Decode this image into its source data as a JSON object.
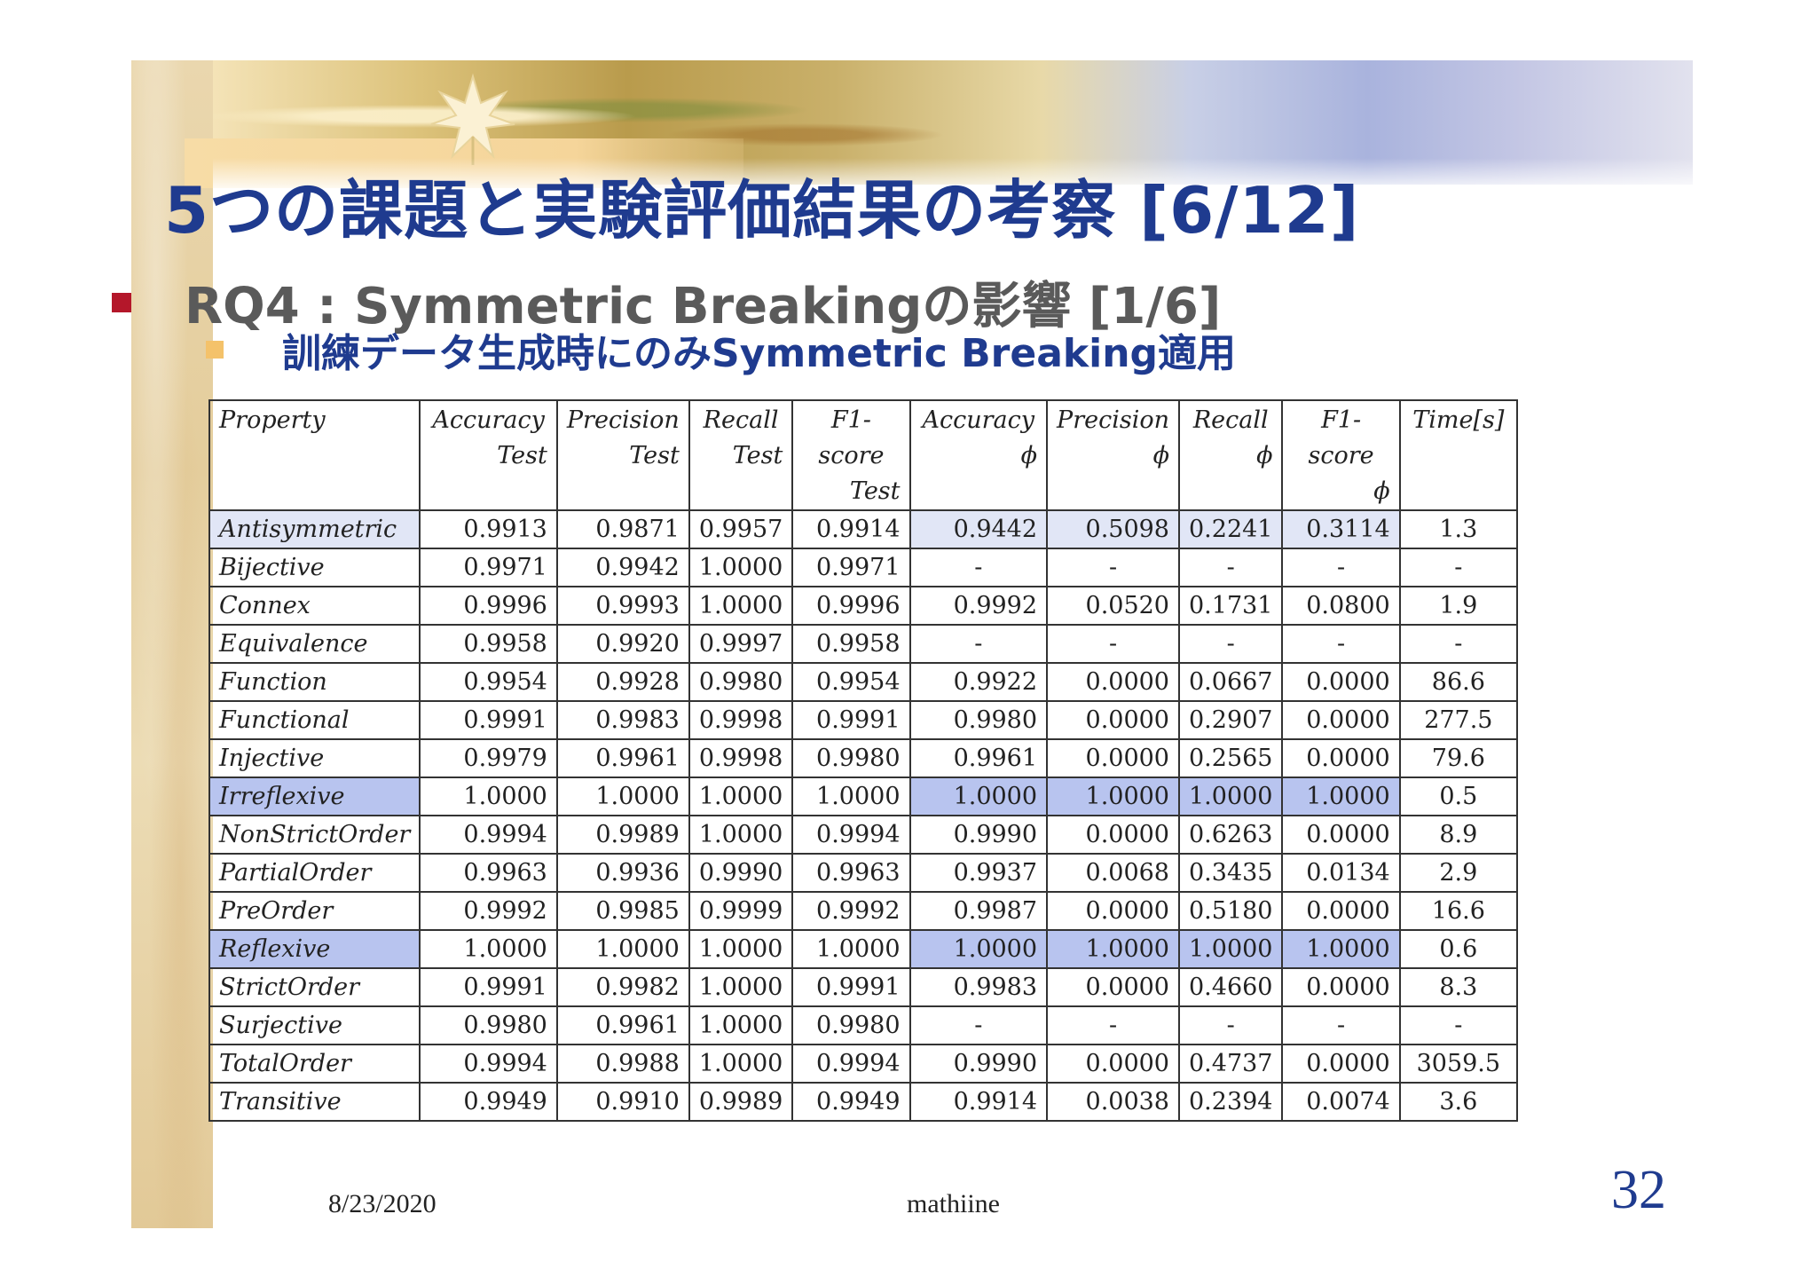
{
  "slide": {
    "title": "5つの課題と実験評価結果の考察 [6/12]",
    "bullet1": "RQ4 : Symmetric Breakingの影響 [1/6]",
    "bullet2": "訓練データ生成時にのみSymmetric Breaking適用",
    "date": "8/23/2020",
    "author": "mathiine",
    "page_number": "32"
  },
  "colors": {
    "title": "#1f3b8f",
    "bullet1_marker": "#b4172a",
    "bullet2_marker": "#f4c26a",
    "highlight_light": "#e1e6f6",
    "highlight_strong": "#b8c4ef"
  },
  "table": {
    "headers": [
      {
        "line1": "Property",
        "line2": ""
      },
      {
        "line1": "Accuracy",
        "line2": "Test"
      },
      {
        "line1": "Precision",
        "line2": "Test"
      },
      {
        "line1": "Recall",
        "line2": "Test"
      },
      {
        "line1": "F1-score",
        "line2": "Test"
      },
      {
        "line1": "Accuracy",
        "line2": "ϕ"
      },
      {
        "line1": "Precision",
        "line2": "ϕ"
      },
      {
        "line1": "Recall",
        "line2": "ϕ"
      },
      {
        "line1": "F1-score",
        "line2": "ϕ"
      },
      {
        "line1": "Time[s]",
        "line2": ""
      }
    ],
    "rows": [
      {
        "highlight": "light",
        "cells": [
          "Antisymmetric",
          "0.9913",
          "0.9871",
          "0.9957",
          "0.9914",
          "0.9442",
          "0.5098",
          "0.2241",
          "0.3114",
          "1.3"
        ]
      },
      {
        "highlight": "none",
        "cells": [
          "Bijective",
          "0.9971",
          "0.9942",
          "1.0000",
          "0.9971",
          "-",
          "-",
          "-",
          "-",
          "-"
        ]
      },
      {
        "highlight": "none",
        "cells": [
          "Connex",
          "0.9996",
          "0.9993",
          "1.0000",
          "0.9996",
          "0.9992",
          "0.0520",
          "0.1731",
          "0.0800",
          "1.9"
        ]
      },
      {
        "highlight": "none",
        "cells": [
          "Equivalence",
          "0.9958",
          "0.9920",
          "0.9997",
          "0.9958",
          "-",
          "-",
          "-",
          "-",
          "-"
        ]
      },
      {
        "highlight": "none",
        "cells": [
          "Function",
          "0.9954",
          "0.9928",
          "0.9980",
          "0.9954",
          "0.9922",
          "0.0000",
          "0.0667",
          "0.0000",
          "86.6"
        ]
      },
      {
        "highlight": "none",
        "cells": [
          "Functional",
          "0.9991",
          "0.9983",
          "0.9998",
          "0.9991",
          "0.9980",
          "0.0000",
          "0.2907",
          "0.0000",
          "277.5"
        ]
      },
      {
        "highlight": "none",
        "cells": [
          "Injective",
          "0.9979",
          "0.9961",
          "0.9998",
          "0.9980",
          "0.9961",
          "0.0000",
          "0.2565",
          "0.0000",
          "79.6"
        ]
      },
      {
        "highlight": "strong",
        "cells": [
          "Irreflexive",
          "1.0000",
          "1.0000",
          "1.0000",
          "1.0000",
          "1.0000",
          "1.0000",
          "1.0000",
          "1.0000",
          "0.5"
        ]
      },
      {
        "highlight": "none",
        "cells": [
          "NonStrictOrder",
          "0.9994",
          "0.9989",
          "1.0000",
          "0.9994",
          "0.9990",
          "0.0000",
          "0.6263",
          "0.0000",
          "8.9"
        ]
      },
      {
        "highlight": "none",
        "cells": [
          "PartialOrder",
          "0.9963",
          "0.9936",
          "0.9990",
          "0.9963",
          "0.9937",
          "0.0068",
          "0.3435",
          "0.0134",
          "2.9"
        ]
      },
      {
        "highlight": "none",
        "cells": [
          "PreOrder",
          "0.9992",
          "0.9985",
          "0.9999",
          "0.9992",
          "0.9987",
          "0.0000",
          "0.5180",
          "0.0000",
          "16.6"
        ]
      },
      {
        "highlight": "strong",
        "cells": [
          "Reflexive",
          "1.0000",
          "1.0000",
          "1.0000",
          "1.0000",
          "1.0000",
          "1.0000",
          "1.0000",
          "1.0000",
          "0.6"
        ]
      },
      {
        "highlight": "none",
        "cells": [
          "StrictOrder",
          "0.9991",
          "0.9982",
          "1.0000",
          "0.9991",
          "0.9983",
          "0.0000",
          "0.4660",
          "0.0000",
          "8.3"
        ]
      },
      {
        "highlight": "none",
        "cells": [
          "Surjective",
          "0.9980",
          "0.9961",
          "1.0000",
          "0.9980",
          "-",
          "-",
          "-",
          "-",
          "-"
        ]
      },
      {
        "highlight": "none",
        "cells": [
          "TotalOrder",
          "0.9994",
          "0.9988",
          "1.0000",
          "0.9994",
          "0.9990",
          "0.0000",
          "0.4737",
          "0.0000",
          "3059.5"
        ]
      },
      {
        "highlight": "none",
        "cells": [
          "Transitive",
          "0.9949",
          "0.9910",
          "0.9989",
          "0.9949",
          "0.9914",
          "0.0038",
          "0.2394",
          "0.0074",
          "3.6"
        ]
      }
    ]
  }
}
